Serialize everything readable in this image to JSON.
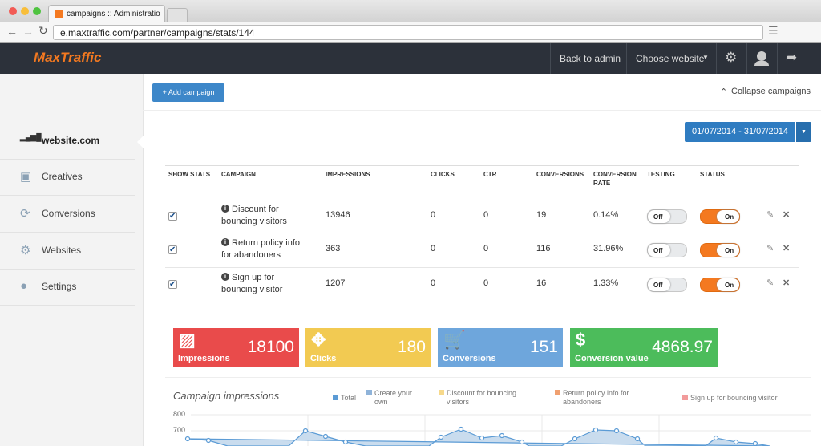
{
  "browser": {
    "tab_title": "campaigns :: Administratio",
    "url": "e.maxtraffic.com/partner/campaigns/stats/144"
  },
  "nav": {
    "logo": "MaxTraffic",
    "back": "Back to admin",
    "choose": "Choose website"
  },
  "sidebar": [
    "website.com",
    "Creatives",
    "Conversions",
    "Websites",
    "Settings"
  ],
  "toolbar": {
    "add": "+ Add campaign",
    "collapse": "Collapse campaigns",
    "date_range": "01/07/2014 - 31/07/2014"
  },
  "table": {
    "headers": [
      "SHOW STATS",
      "CAMPAIGN",
      "IMPRESSIONS",
      "CLICKS",
      "CTR",
      "CONVERSIONS",
      "CONVERSION RATE",
      "TESTING",
      "STATUS"
    ],
    "rows": [
      [
        "Discount for bouncing visitors",
        13946,
        0,
        0,
        19,
        "0.14%",
        "Off",
        "On"
      ],
      [
        "Return policy info for abandoners",
        363,
        0,
        0,
        116,
        "31.96%",
        "Off",
        "On"
      ],
      [
        "Sign up for bouncing visitor",
        1207,
        0,
        0,
        16,
        "1.33%",
        "Off",
        "On"
      ]
    ]
  },
  "stats": [
    {
      "label": "Impressions",
      "value": 18100
    },
    {
      "label": "Clicks",
      "value": 180
    },
    {
      "label": "Conversions",
      "value": 151
    },
    {
      "label": "Conversion value",
      "value": 4868.97
    }
  ],
  "chart": {
    "title": "Campaign impressions",
    "legend": [
      "Total",
      "Create your own",
      "Discount for bouncing visitors",
      "Return policy info for abandoners",
      "Sign up for bouncing visitor"
    ],
    "yticks": [
      800,
      700
    ]
  }
}
